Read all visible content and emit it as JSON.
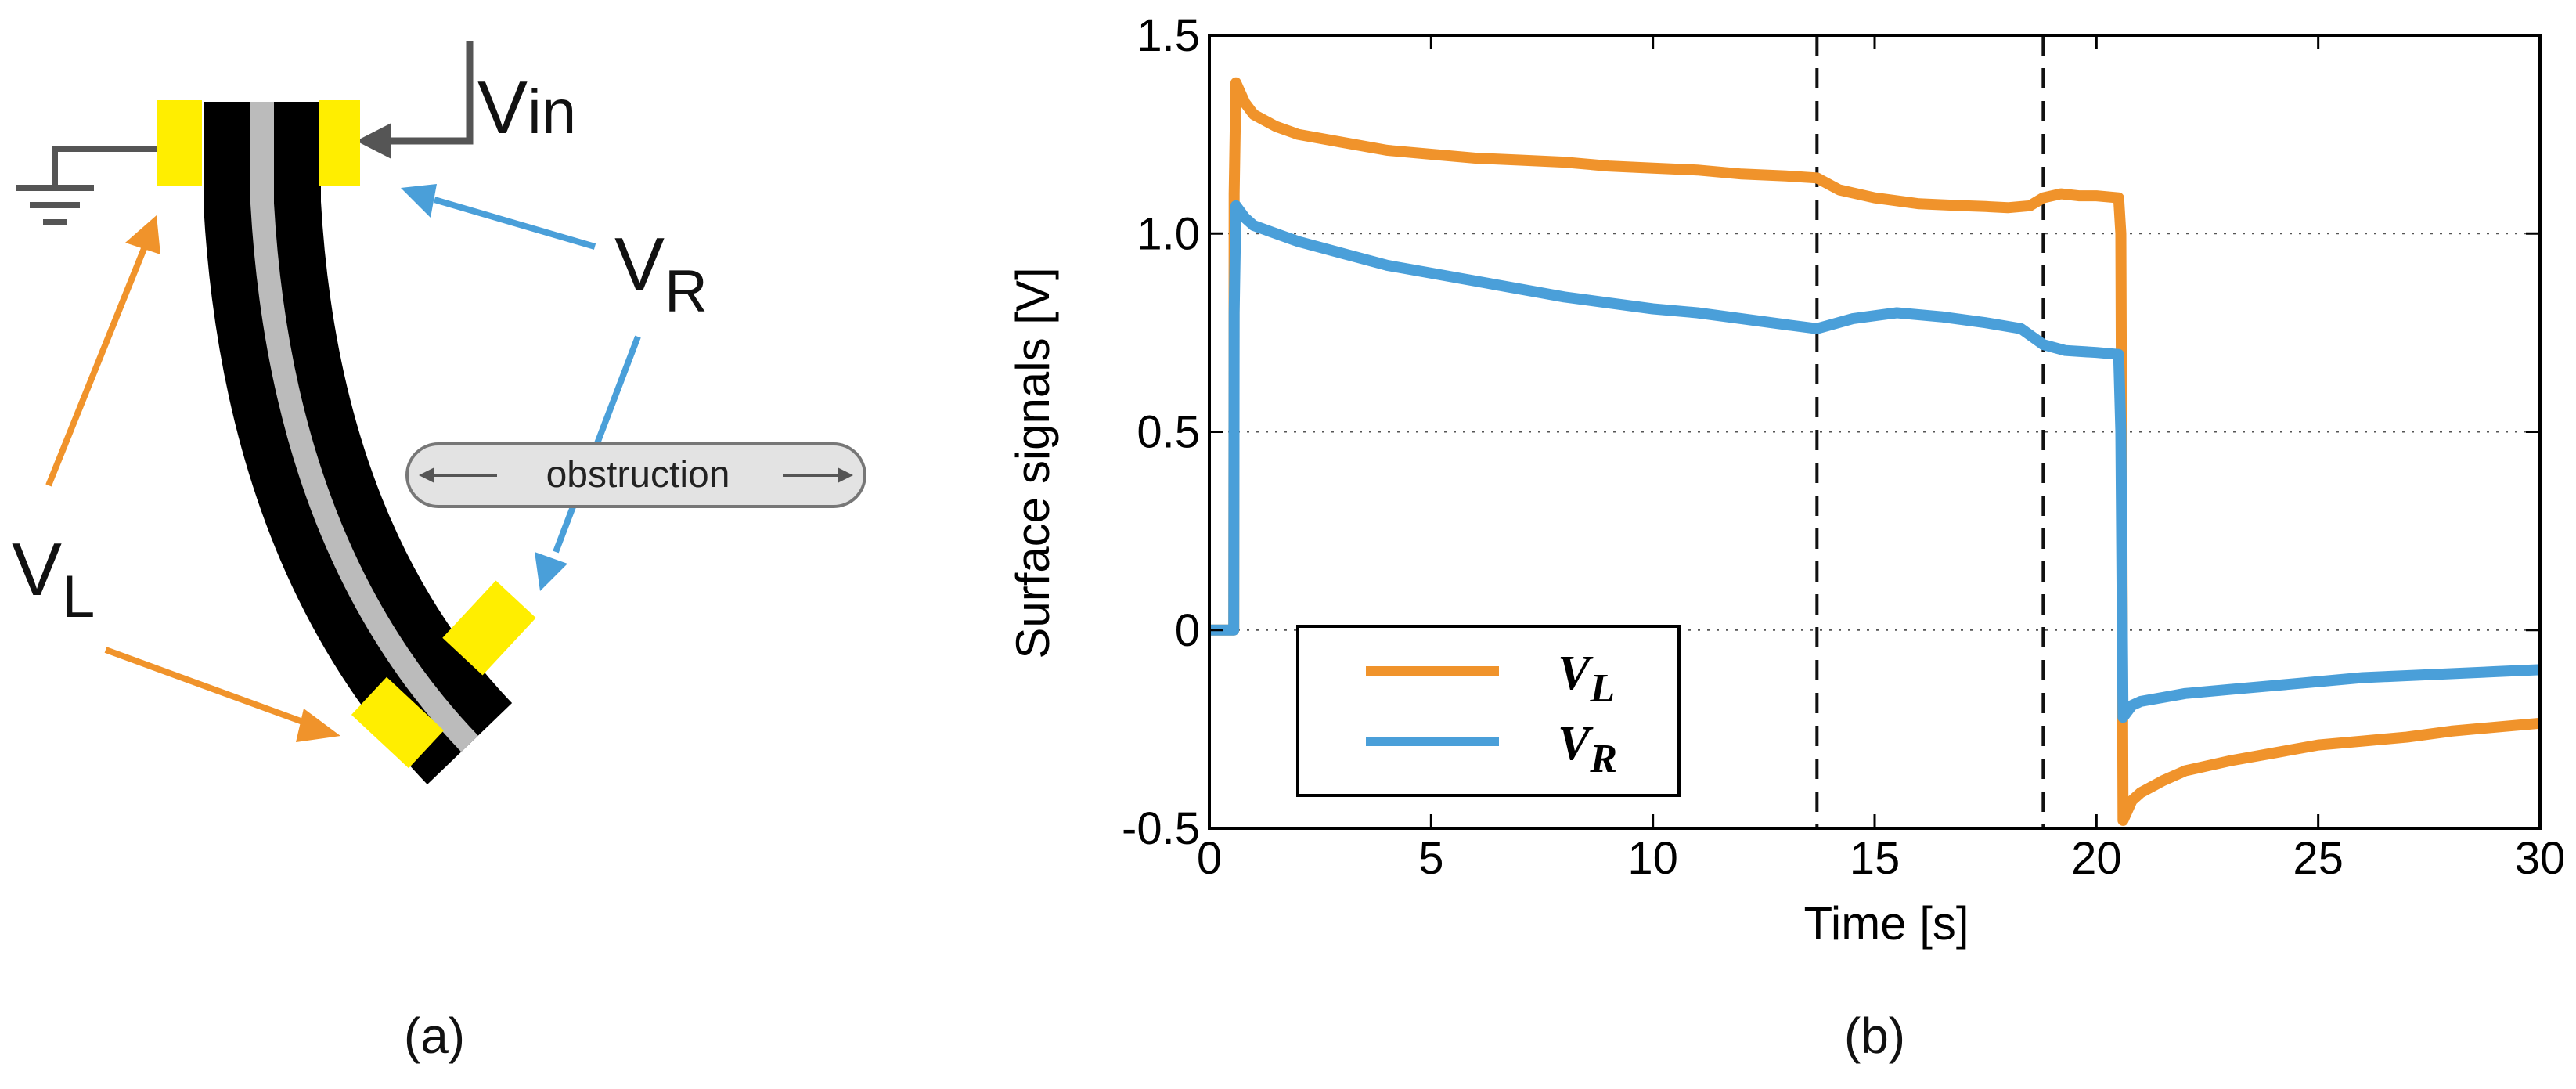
{
  "panel_a": {
    "caption": "(a)",
    "label_vin": "V",
    "label_vin_sub": "in",
    "label_vr": "V",
    "label_vr_sub": "R",
    "label_vl": "V",
    "label_vl_sub": "L",
    "obstruction_label": "obstruction",
    "colors": {
      "electrode": "#ffee00",
      "beam": "#000000",
      "core": "#bbbbbb",
      "orange": "#f0932b",
      "blue": "#4a9fd9",
      "gray": "#555555"
    }
  },
  "panel_b": {
    "caption": "(b)"
  },
  "chart_data": {
    "type": "line",
    "title": "",
    "xlabel": "Time [s]",
    "ylabel": "Surface signals [V]",
    "xlim": [
      0,
      30
    ],
    "ylim": [
      -0.5,
      1.5
    ],
    "xticks": [
      0,
      5,
      10,
      15,
      20,
      25,
      30
    ],
    "xtick_labels": [
      "0",
      "5",
      "10",
      "15",
      "20",
      "25",
      "30"
    ],
    "yticks": [
      -0.5,
      0,
      0.5,
      1.0,
      1.5
    ],
    "ytick_labels": [
      "-0.5",
      "0",
      "0.5",
      "1.0",
      "1.5"
    ],
    "grid": "horizontal dotted",
    "vlines": [
      13.7,
      18.8
    ],
    "legend": {
      "position": "bottom-left",
      "entries": [
        "V_L",
        "V_R"
      ]
    },
    "series": [
      {
        "name": "V_L",
        "legend_main": "V",
        "legend_sub": "L",
        "color": "#f0932b",
        "x": [
          0,
          0.55,
          0.56,
          0.6,
          0.8,
          1.0,
          1.5,
          2,
          3,
          4,
          5,
          6,
          7,
          8,
          9,
          10,
          11,
          12,
          13,
          13.7,
          14.2,
          15,
          16,
          17,
          17.5,
          18,
          18.5,
          18.8,
          19.2,
          19.6,
          20,
          20.5,
          20.55,
          20.6,
          20.8,
          21,
          21.5,
          22,
          23,
          24,
          25,
          26,
          27,
          28,
          29,
          30
        ],
        "y": [
          0.0,
          0.0,
          1.1,
          1.38,
          1.33,
          1.3,
          1.27,
          1.25,
          1.23,
          1.21,
          1.2,
          1.19,
          1.185,
          1.18,
          1.17,
          1.165,
          1.16,
          1.15,
          1.145,
          1.14,
          1.11,
          1.09,
          1.075,
          1.07,
          1.068,
          1.065,
          1.07,
          1.09,
          1.1,
          1.095,
          1.095,
          1.09,
          1.0,
          -0.48,
          -0.43,
          -0.41,
          -0.38,
          -0.355,
          -0.33,
          -0.31,
          -0.29,
          -0.28,
          -0.27,
          -0.255,
          -0.245,
          -0.235
        ]
      },
      {
        "name": "V_R",
        "legend_main": "V",
        "legend_sub": "R",
        "color": "#4a9fd9",
        "x": [
          0,
          0.55,
          0.56,
          0.6,
          0.8,
          1.0,
          1.5,
          2,
          3,
          4,
          5,
          6,
          7,
          8,
          9,
          10,
          11,
          12,
          13,
          13.7,
          14.5,
          15.5,
          16.5,
          17.5,
          18.3,
          18.8,
          19.3,
          20,
          20.5,
          20.55,
          20.6,
          20.8,
          21,
          21.5,
          22,
          23,
          24,
          25,
          26,
          27,
          28,
          29,
          30
        ],
        "y": [
          0.0,
          0.0,
          0.8,
          1.07,
          1.04,
          1.02,
          1.0,
          0.98,
          0.95,
          0.92,
          0.9,
          0.88,
          0.86,
          0.84,
          0.825,
          0.81,
          0.8,
          0.785,
          0.77,
          0.76,
          0.785,
          0.8,
          0.79,
          0.775,
          0.76,
          0.72,
          0.705,
          0.7,
          0.695,
          0.5,
          -0.22,
          -0.19,
          -0.18,
          -0.17,
          -0.16,
          -0.15,
          -0.14,
          -0.13,
          -0.12,
          -0.115,
          -0.11,
          -0.105,
          -0.1
        ]
      }
    ]
  }
}
